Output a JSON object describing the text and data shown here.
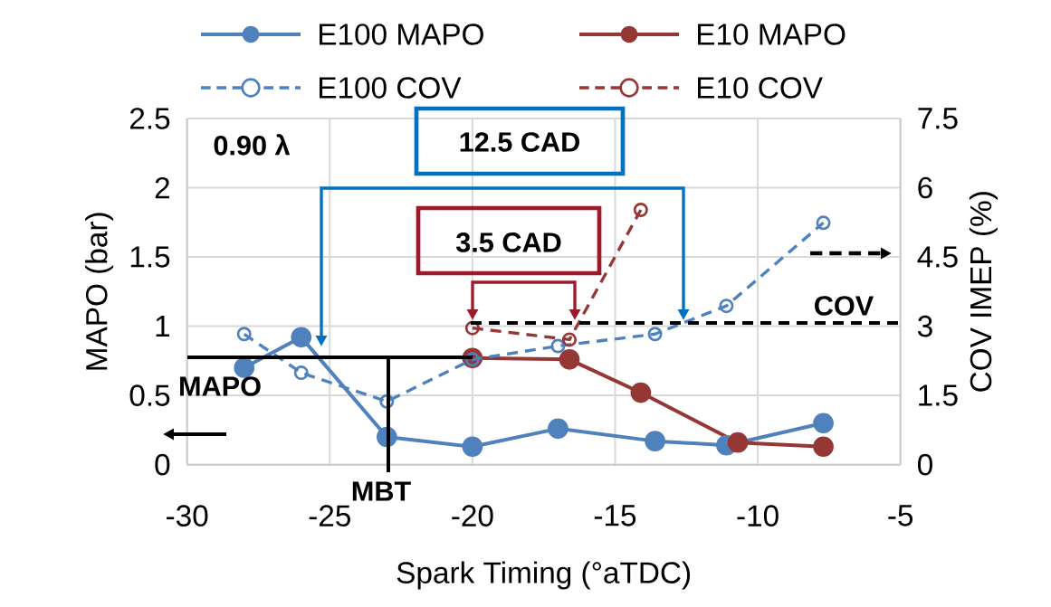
{
  "chart_data": {
    "type": "line",
    "xlabel": "Spark Timing (°aTDC)",
    "ylabel": "MAPO (bar)",
    "y2label": "COV IMEP (%)",
    "xlim": [
      -30,
      -5
    ],
    "xticks": [
      -30,
      -25,
      -20,
      -15,
      -10,
      -5
    ],
    "ylim": [
      0,
      2.5
    ],
    "yticks": [
      0,
      0.5,
      1,
      1.5,
      2,
      2.5
    ],
    "y2lim": [
      0,
      7.5
    ],
    "y2ticks": [
      0,
      1.5,
      3,
      4.5,
      6,
      7.5
    ],
    "grid": true,
    "legend": "top",
    "marker": "circle",
    "series": [
      {
        "name": "E100 MAPO",
        "color": "#4f81bd",
        "x": [
          -28,
          -26,
          -23,
          -20,
          -17,
          -13.6,
          -11.1,
          -7.7
        ],
        "values": [
          0.7,
          0.92,
          0.2,
          0.13,
          0.26,
          0.17,
          0.14,
          0.3
        ]
      },
      {
        "name": "E10 MAPO",
        "color": "#953735",
        "x": [
          -20,
          -16.6,
          -14.1,
          -10.7,
          -7.7
        ],
        "values": [
          0.77,
          0.76,
          0.52,
          0.16,
          0.13
        ]
      },
      {
        "name": "E100 COV",
        "color": "#4f81bd",
        "axis": "y2",
        "line_style": "dashed",
        "x": [
          -28,
          -26,
          -23,
          -20,
          -17,
          -13.6,
          -11.1,
          -7.7
        ],
        "values": [
          2.83,
          1.99,
          1.37,
          2.28,
          2.57,
          2.83,
          3.44,
          5.24
        ]
      },
      {
        "name": "E10 COV",
        "color": "#953735",
        "axis": "y2",
        "line_style": "dashed",
        "x": [
          -20,
          -16.6,
          -14.1
        ],
        "values": [
          2.96,
          2.71,
          5.52
        ]
      }
    ],
    "annotations": [
      "0.90 λ",
      "12.5 CAD",
      "3.5 CAD",
      {
        "text": "MAPO",
        "x": -20,
        "y": 0.77
      },
      "MBT",
      "COV"
    ]
  }
}
